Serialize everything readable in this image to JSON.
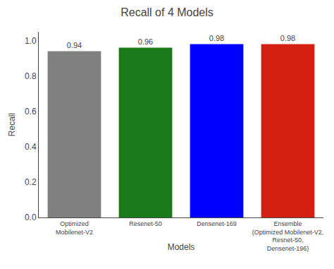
{
  "chart_data": {
    "type": "bar",
    "title": "Recall of 4 Models",
    "xlabel": "Models",
    "ylabel": "Recall",
    "categories": [
      "Optimized\nMobilenet-V2",
      "Resenet-50",
      "Densenet-169",
      "Ensemble\n(Optimized Mobilenet-V2,\nResnet-50,\nDensenet-196)"
    ],
    "values": [
      0.94,
      0.96,
      0.98,
      0.98
    ],
    "colors": [
      "#808080",
      "#1a7a1a",
      "#0000ff",
      "#d42010"
    ],
    "ylim": [
      0.0,
      1.05
    ],
    "yticks": [
      {
        "value": 0,
        "label": "0.0"
      },
      0.2,
      0.4,
      0.6,
      0.8,
      {
        "value": 1,
        "label": "1.0"
      }
    ],
    "data_labels": true,
    "grid": false
  }
}
